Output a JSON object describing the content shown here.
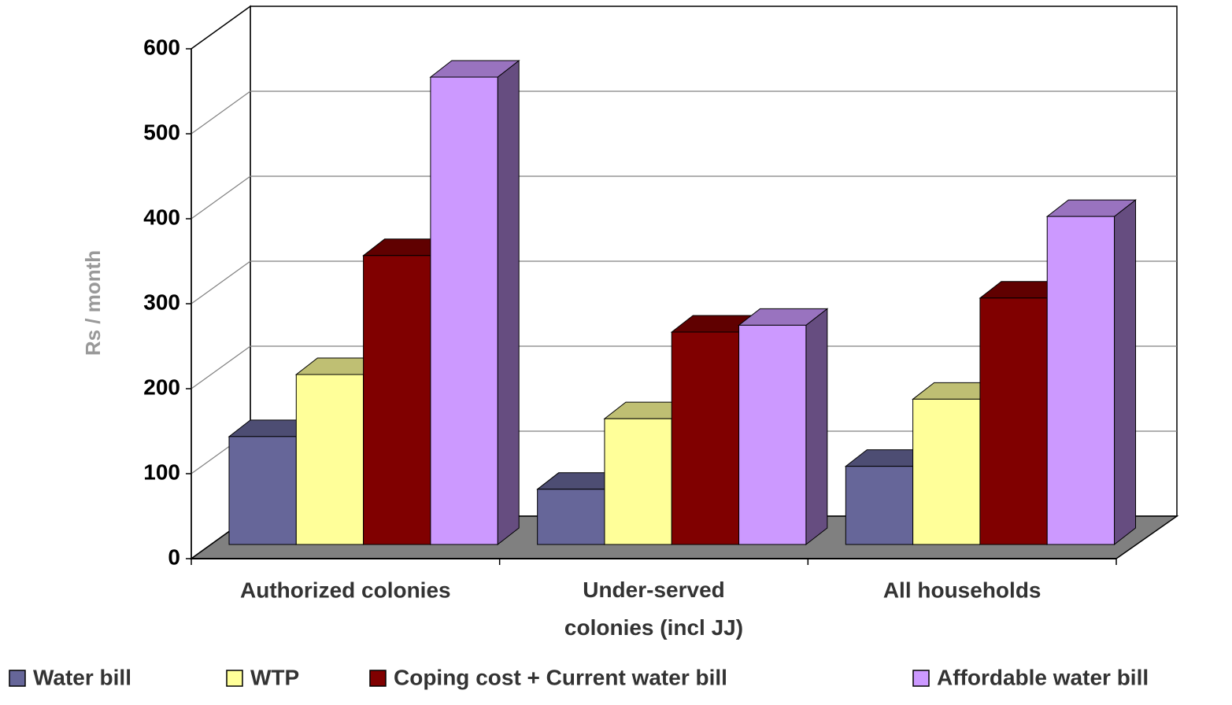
{
  "chart_data": {
    "type": "bar3d",
    "y_label": "Rs / month",
    "categories": [
      "Authorized colonies",
      "Under-served colonies (incl JJ)",
      "All households"
    ],
    "series": [
      {
        "name": "Water bill",
        "color": "#666699",
        "values": [
          127,
          65,
          92
        ]
      },
      {
        "name": "WTP",
        "color": "#ffff99",
        "values": [
          200,
          148,
          171
        ]
      },
      {
        "name": "Coping cost + Current water bill",
        "color": "#800000",
        "values": [
          340,
          250,
          290
        ]
      },
      {
        "name": "Affordable water bill",
        "color": "#cc99ff",
        "values": [
          550,
          258,
          386
        ]
      }
    ],
    "ylim": [
      0,
      600
    ],
    "yticks": [
      0,
      100,
      200,
      300,
      400,
      500,
      600
    ],
    "grid": true,
    "legend": "bottom"
  }
}
